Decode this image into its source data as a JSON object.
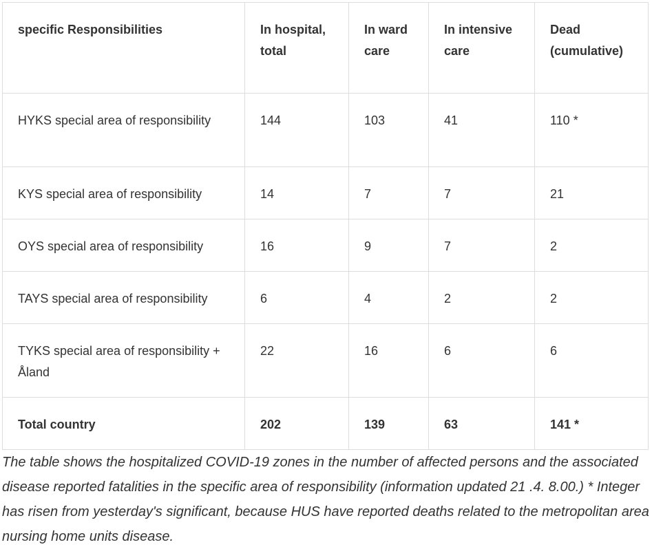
{
  "table": {
    "header": [
      "specific Responsibilities",
      "In hospital, total",
      "In ward care",
      "In intensive care",
      "Dead (cumulative)"
    ],
    "rows": [
      [
        "HYKS special area of responsibility",
        "144",
        "103",
        "41",
        "110 *"
      ],
      [
        "KYS special area of responsibility",
        "14",
        "7",
        "7",
        "21"
      ],
      [
        "OYS special area of responsibility",
        "16",
        "9",
        "7",
        "2"
      ],
      [
        "TAYS special area of responsibility",
        "6",
        "4",
        "2",
        "2"
      ],
      [
        "TYKS special area of responsibility + Åland",
        "22",
        "16",
        "6",
        "6"
      ],
      [
        "Total country",
        "202",
        "139",
        "63",
        "141 *"
      ]
    ]
  },
  "caption": "The table shows the hospitalized COVID-19 zones in the number of affected persons and the associated disease reported fatalities in the specific area of responsibility (information updated 21 .4. 8.00.) * Integer has risen from yesterday's significant, because HUS have reported deaths related to the metropolitan area nursing home units disease."
}
